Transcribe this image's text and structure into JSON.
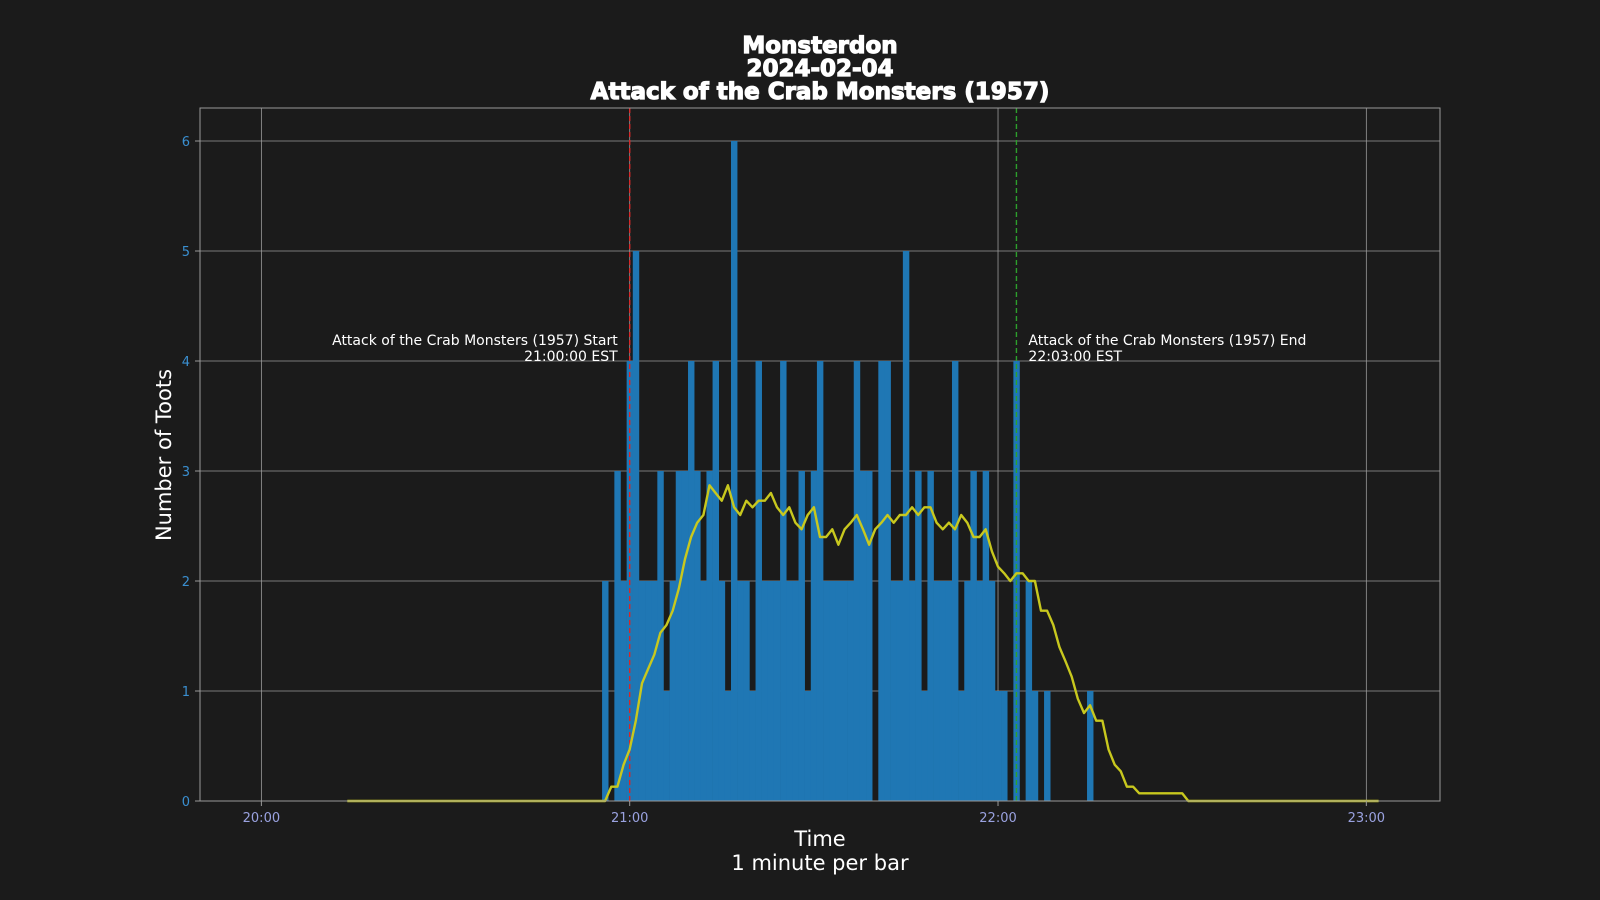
{
  "chart_data": {
    "type": "bar",
    "title_lines": [
      "Monsterdon",
      "2024-02-04",
      "Attack of the Crab Monsters (1957)"
    ],
    "xlabel_lines": [
      "Time",
      "1 minute per bar"
    ],
    "ylabel": "Number of Toots",
    "x_unit": "time of day (HH:MM)",
    "xlim": [
      "19:50",
      "23:12"
    ],
    "ylim": [
      0,
      6.3
    ],
    "x_ticks": [
      "20:00",
      "21:00",
      "22:00",
      "23:00"
    ],
    "y_ticks": [
      0,
      1,
      2,
      3,
      4,
      5,
      6
    ],
    "grid": true,
    "bar_width_minutes": 1,
    "bar_color": "#1f77b4",
    "rolling_color": "#c8c81e",
    "bars": [
      [
        "20:56",
        2
      ],
      [
        "20:58",
        3
      ],
      [
        "20:59",
        2
      ],
      [
        "21:00",
        4
      ],
      [
        "21:01",
        5
      ],
      [
        "21:02",
        2
      ],
      [
        "21:03",
        2
      ],
      [
        "21:04",
        2
      ],
      [
        "21:05",
        3
      ],
      [
        "21:06",
        1
      ],
      [
        "21:07",
        2
      ],
      [
        "21:08",
        3
      ],
      [
        "21:09",
        3
      ],
      [
        "21:10",
        4
      ],
      [
        "21:11",
        3
      ],
      [
        "21:12",
        2
      ],
      [
        "21:13",
        3
      ],
      [
        "21:14",
        4
      ],
      [
        "21:15",
        2
      ],
      [
        "21:16",
        1
      ],
      [
        "21:17",
        6
      ],
      [
        "21:18",
        2
      ],
      [
        "21:19",
        2
      ],
      [
        "21:20",
        1
      ],
      [
        "21:21",
        4
      ],
      [
        "21:22",
        2
      ],
      [
        "21:23",
        2
      ],
      [
        "21:24",
        2
      ],
      [
        "21:25",
        4
      ],
      [
        "21:26",
        2
      ],
      [
        "21:27",
        2
      ],
      [
        "21:28",
        3
      ],
      [
        "21:29",
        1
      ],
      [
        "21:30",
        3
      ],
      [
        "21:31",
        4
      ],
      [
        "21:32",
        2
      ],
      [
        "21:33",
        2
      ],
      [
        "21:34",
        2
      ],
      [
        "21:35",
        2
      ],
      [
        "21:36",
        2
      ],
      [
        "21:37",
        4
      ],
      [
        "21:38",
        3
      ],
      [
        "21:39",
        3
      ],
      [
        "21:41",
        4
      ],
      [
        "21:42",
        4
      ],
      [
        "21:43",
        2
      ],
      [
        "21:44",
        2
      ],
      [
        "21:45",
        5
      ],
      [
        "21:46",
        2
      ],
      [
        "21:47",
        3
      ],
      [
        "21:48",
        1
      ],
      [
        "21:49",
        3
      ],
      [
        "21:50",
        2
      ],
      [
        "21:51",
        2
      ],
      [
        "21:52",
        2
      ],
      [
        "21:53",
        4
      ],
      [
        "21:54",
        1
      ],
      [
        "21:55",
        2
      ],
      [
        "21:56",
        3
      ],
      [
        "21:57",
        2
      ],
      [
        "21:58",
        3
      ],
      [
        "21:59",
        2
      ],
      [
        "22:00",
        1
      ],
      [
        "22:01",
        1
      ],
      [
        "22:03",
        4
      ],
      [
        "22:05",
        2
      ],
      [
        "22:06",
        1
      ],
      [
        "22:08",
        1
      ],
      [
        "22:15",
        1
      ]
    ],
    "rolling_average": [
      [
        "20:14",
        0
      ],
      [
        "20:56",
        0
      ],
      [
        "20:57",
        0.13
      ],
      [
        "20:58",
        0.13
      ],
      [
        "20:59",
        0.33
      ],
      [
        "21:00",
        0.47
      ],
      [
        "21:01",
        0.73
      ],
      [
        "21:02",
        1.07
      ],
      [
        "21:03",
        1.2
      ],
      [
        "21:04",
        1.33
      ],
      [
        "21:05",
        1.53
      ],
      [
        "21:06",
        1.6
      ],
      [
        "21:07",
        1.73
      ],
      [
        "21:08",
        1.93
      ],
      [
        "21:09",
        2.2
      ],
      [
        "21:10",
        2.4
      ],
      [
        "21:11",
        2.53
      ],
      [
        "21:12",
        2.6
      ],
      [
        "21:13",
        2.87
      ],
      [
        "21:14",
        2.8
      ],
      [
        "21:15",
        2.73
      ],
      [
        "21:16",
        2.87
      ],
      [
        "21:17",
        2.67
      ],
      [
        "21:18",
        2.6
      ],
      [
        "21:19",
        2.73
      ],
      [
        "21:20",
        2.67
      ],
      [
        "21:21",
        2.73
      ],
      [
        "21:22",
        2.73
      ],
      [
        "21:23",
        2.8
      ],
      [
        "21:24",
        2.67
      ],
      [
        "21:25",
        2.6
      ],
      [
        "21:26",
        2.67
      ],
      [
        "21:27",
        2.53
      ],
      [
        "21:28",
        2.47
      ],
      [
        "21:29",
        2.6
      ],
      [
        "21:30",
        2.67
      ],
      [
        "21:31",
        2.4
      ],
      [
        "21:32",
        2.4
      ],
      [
        "21:33",
        2.47
      ],
      [
        "21:34",
        2.33
      ],
      [
        "21:35",
        2.47
      ],
      [
        "21:36",
        2.53
      ],
      [
        "21:37",
        2.6
      ],
      [
        "21:38",
        2.47
      ],
      [
        "21:39",
        2.33
      ],
      [
        "21:40",
        2.47
      ],
      [
        "21:41",
        2.53
      ],
      [
        "21:42",
        2.6
      ],
      [
        "21:43",
        2.53
      ],
      [
        "21:44",
        2.6
      ],
      [
        "21:45",
        2.6
      ],
      [
        "21:46",
        2.67
      ],
      [
        "21:47",
        2.6
      ],
      [
        "21:48",
        2.67
      ],
      [
        "21:49",
        2.67
      ],
      [
        "21:50",
        2.53
      ],
      [
        "21:51",
        2.47
      ],
      [
        "21:52",
        2.53
      ],
      [
        "21:53",
        2.47
      ],
      [
        "21:54",
        2.6
      ],
      [
        "21:55",
        2.53
      ],
      [
        "21:56",
        2.4
      ],
      [
        "21:57",
        2.4
      ],
      [
        "21:58",
        2.47
      ],
      [
        "21:59",
        2.27
      ],
      [
        "22:00",
        2.13
      ],
      [
        "22:01",
        2.07
      ],
      [
        "22:02",
        2.0
      ],
      [
        "22:03",
        2.07
      ],
      [
        "22:04",
        2.07
      ],
      [
        "22:05",
        2.0
      ],
      [
        "22:06",
        2.0
      ],
      [
        "22:07",
        1.73
      ],
      [
        "22:08",
        1.73
      ],
      [
        "22:09",
        1.6
      ],
      [
        "22:10",
        1.4
      ],
      [
        "22:11",
        1.27
      ],
      [
        "22:12",
        1.13
      ],
      [
        "22:13",
        0.93
      ],
      [
        "22:14",
        0.8
      ],
      [
        "22:15",
        0.87
      ],
      [
        "22:16",
        0.73
      ],
      [
        "22:17",
        0.73
      ],
      [
        "22:18",
        0.47
      ],
      [
        "22:19",
        0.33
      ],
      [
        "22:20",
        0.27
      ],
      [
        "22:21",
        0.13
      ],
      [
        "22:22",
        0.13
      ],
      [
        "22:23",
        0.07
      ],
      [
        "22:30",
        0.07
      ],
      [
        "22:31",
        0
      ],
      [
        "23:02",
        0
      ]
    ],
    "annotations": [
      {
        "time": "21:00",
        "color": "#d62728",
        "side": "left",
        "lines": [
          "Attack of the Crab Monsters (1957) Start",
          "21:00:00 EST"
        ]
      },
      {
        "time": "22:03",
        "color": "#2ca02c",
        "side": "right",
        "lines": [
          "Attack of the Crab Monsters (1957) End",
          "22:03:00 EST"
        ]
      }
    ]
  }
}
